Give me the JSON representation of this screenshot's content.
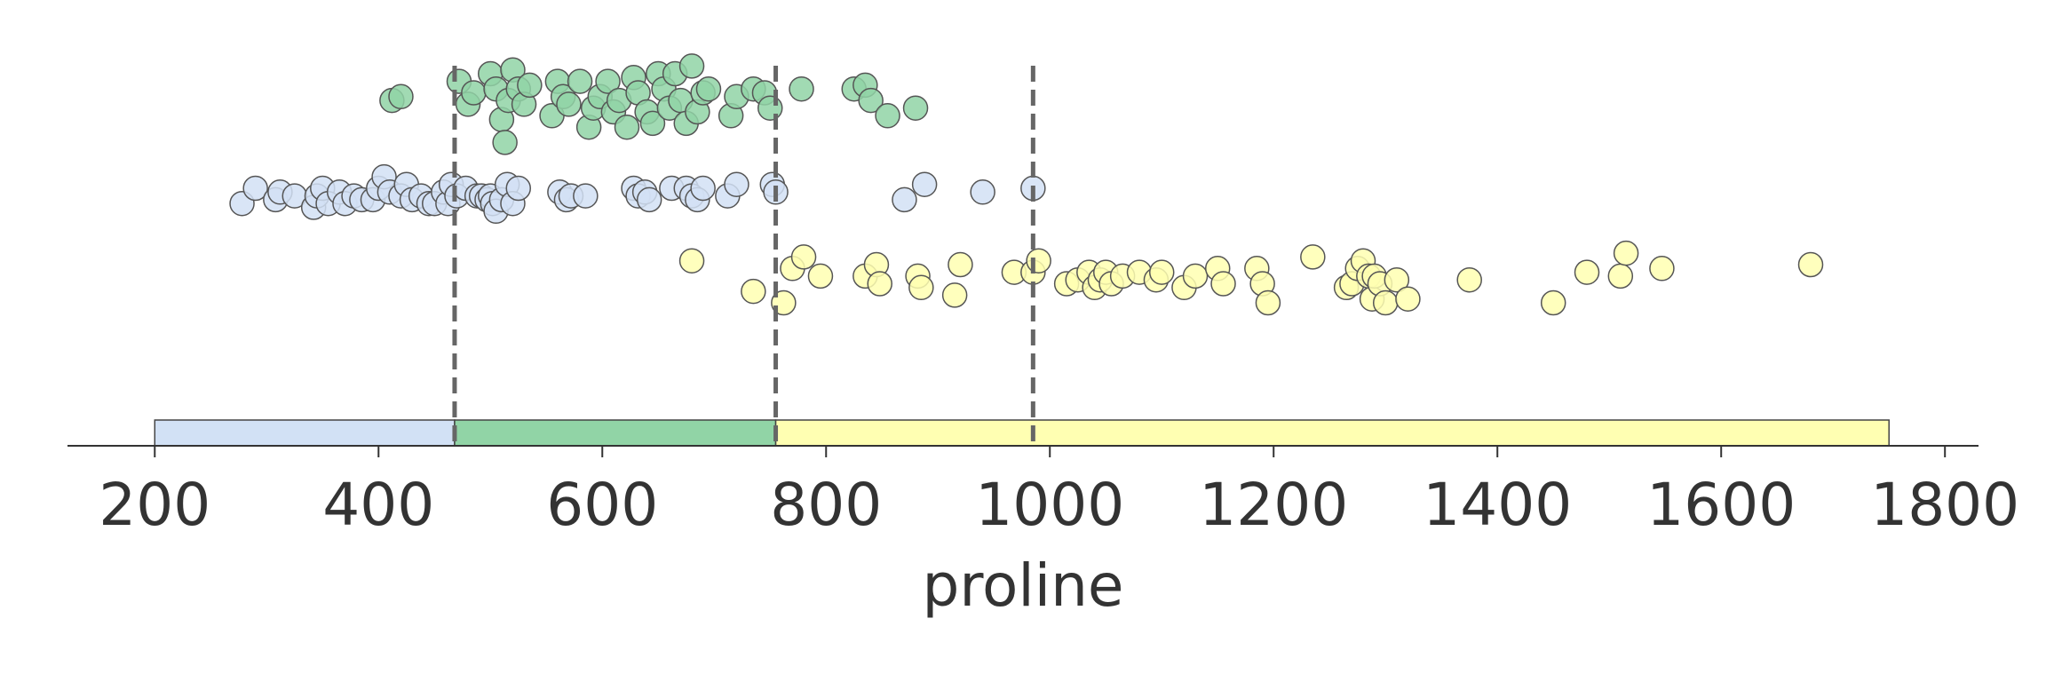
{
  "chart_data": {
    "type": "scatter",
    "xlabel": "proline",
    "xlim": [
      122,
      1830
    ],
    "x_ticks": [
      200,
      400,
      600,
      800,
      1000,
      1200,
      1400,
      1600,
      1800
    ],
    "grid": false,
    "legend": "none",
    "split_lines": [
      468,
      755,
      985
    ],
    "bands": [
      {
        "start": 200,
        "end": 468,
        "color": "#d2e1f5"
      },
      {
        "start": 468,
        "end": 755,
        "color": "#91d4a6"
      },
      {
        "start": 755,
        "end": 1750,
        "color": "#ffffb2"
      }
    ],
    "series": [
      {
        "color": "#91d4a6",
        "points": [
          [
            412,
            0.83
          ],
          [
            420,
            0.84
          ],
          [
            472,
            0.88
          ],
          [
            480,
            0.82
          ],
          [
            485,
            0.85
          ],
          [
            500,
            0.9
          ],
          [
            505,
            0.86
          ],
          [
            510,
            0.78
          ],
          [
            513,
            0.72
          ],
          [
            516,
            0.83
          ],
          [
            520,
            0.91
          ],
          [
            525,
            0.86
          ],
          [
            530,
            0.82
          ],
          [
            535,
            0.87
          ],
          [
            555,
            0.79
          ],
          [
            560,
            0.88
          ],
          [
            565,
            0.84
          ],
          [
            570,
            0.82
          ],
          [
            580,
            0.88
          ],
          [
            588,
            0.76
          ],
          [
            592,
            0.81
          ],
          [
            598,
            0.84
          ],
          [
            605,
            0.88
          ],
          [
            610,
            0.8
          ],
          [
            615,
            0.83
          ],
          [
            622,
            0.76
          ],
          [
            628,
            0.89
          ],
          [
            632,
            0.85
          ],
          [
            640,
            0.8
          ],
          [
            645,
            0.77
          ],
          [
            650,
            0.9
          ],
          [
            655,
            0.86
          ],
          [
            660,
            0.81
          ],
          [
            665,
            0.9
          ],
          [
            670,
            0.83
          ],
          [
            675,
            0.77
          ],
          [
            680,
            0.92
          ],
          [
            685,
            0.8
          ],
          [
            690,
            0.85
          ],
          [
            695,
            0.86
          ],
          [
            715,
            0.79
          ],
          [
            720,
            0.84
          ],
          [
            735,
            0.86
          ],
          [
            745,
            0.85
          ],
          [
            750,
            0.81
          ],
          [
            778,
            0.86
          ],
          [
            825,
            0.86
          ],
          [
            835,
            0.87
          ],
          [
            840,
            0.83
          ],
          [
            855,
            0.79
          ],
          [
            880,
            0.81
          ]
        ]
      },
      {
        "color": "#d2e1f5",
        "points": [
          [
            278,
            0.56
          ],
          [
            290,
            0.6
          ],
          [
            308,
            0.57
          ],
          [
            312,
            0.59
          ],
          [
            325,
            0.58
          ],
          [
            342,
            0.55
          ],
          [
            345,
            0.58
          ],
          [
            350,
            0.6
          ],
          [
            355,
            0.56
          ],
          [
            365,
            0.59
          ],
          [
            370,
            0.56
          ],
          [
            378,
            0.58
          ],
          [
            385,
            0.57
          ],
          [
            395,
            0.57
          ],
          [
            400,
            0.6
          ],
          [
            405,
            0.63
          ],
          [
            410,
            0.59
          ],
          [
            420,
            0.58
          ],
          [
            425,
            0.61
          ],
          [
            430,
            0.57
          ],
          [
            438,
            0.58
          ],
          [
            445,
            0.56
          ],
          [
            450,
            0.56
          ],
          [
            458,
            0.59
          ],
          [
            462,
            0.56
          ],
          [
            465,
            0.61
          ],
          [
            470,
            0.58
          ],
          [
            478,
            0.6
          ],
          [
            488,
            0.58
          ],
          [
            492,
            0.58
          ],
          [
            497,
            0.57
          ],
          [
            500,
            0.58
          ],
          [
            502,
            0.56
          ],
          [
            505,
            0.54
          ],
          [
            510,
            0.57
          ],
          [
            515,
            0.61
          ],
          [
            520,
            0.56
          ],
          [
            525,
            0.6
          ],
          [
            562,
            0.59
          ],
          [
            568,
            0.57
          ],
          [
            572,
            0.58
          ],
          [
            585,
            0.58
          ],
          [
            628,
            0.6
          ],
          [
            632,
            0.58
          ],
          [
            638,
            0.59
          ],
          [
            642,
            0.57
          ],
          [
            662,
            0.6
          ],
          [
            675,
            0.6
          ],
          [
            680,
            0.58
          ],
          [
            685,
            0.57
          ],
          [
            690,
            0.6
          ],
          [
            712,
            0.58
          ],
          [
            720,
            0.61
          ],
          [
            752,
            0.61
          ],
          [
            755,
            0.59
          ],
          [
            870,
            0.57
          ],
          [
            888,
            0.61
          ],
          [
            940,
            0.59
          ],
          [
            985,
            0.6
          ]
        ]
      },
      {
        "color": "#ffffb2",
        "points": [
          [
            680,
            0.41
          ],
          [
            735,
            0.33
          ],
          [
            762,
            0.3
          ],
          [
            770,
            0.39
          ],
          [
            780,
            0.42
          ],
          [
            795,
            0.37
          ],
          [
            835,
            0.37
          ],
          [
            845,
            0.4
          ],
          [
            848,
            0.35
          ],
          [
            882,
            0.37
          ],
          [
            885,
            0.34
          ],
          [
            915,
            0.32
          ],
          [
            920,
            0.4
          ],
          [
            968,
            0.38
          ],
          [
            985,
            0.38
          ],
          [
            990,
            0.41
          ],
          [
            1015,
            0.35
          ],
          [
            1025,
            0.36
          ],
          [
            1035,
            0.38
          ],
          [
            1040,
            0.34
          ],
          [
            1045,
            0.36
          ],
          [
            1050,
            0.38
          ],
          [
            1055,
            0.35
          ],
          [
            1065,
            0.37
          ],
          [
            1080,
            0.38
          ],
          [
            1095,
            0.36
          ],
          [
            1100,
            0.38
          ],
          [
            1120,
            0.34
          ],
          [
            1130,
            0.37
          ],
          [
            1150,
            0.39
          ],
          [
            1155,
            0.35
          ],
          [
            1185,
            0.39
          ],
          [
            1190,
            0.35
          ],
          [
            1195,
            0.3
          ],
          [
            1235,
            0.42
          ],
          [
            1265,
            0.34
          ],
          [
            1270,
            0.35
          ],
          [
            1275,
            0.39
          ],
          [
            1280,
            0.41
          ],
          [
            1285,
            0.37
          ],
          [
            1288,
            0.31
          ],
          [
            1290,
            0.37
          ],
          [
            1295,
            0.35
          ],
          [
            1300,
            0.3
          ],
          [
            1310,
            0.36
          ],
          [
            1320,
            0.31
          ],
          [
            1375,
            0.36
          ],
          [
            1450,
            0.3
          ],
          [
            1480,
            0.38
          ],
          [
            1510,
            0.37
          ],
          [
            1515,
            0.43
          ],
          [
            1547,
            0.39
          ],
          [
            1680,
            0.4
          ]
        ]
      }
    ]
  }
}
